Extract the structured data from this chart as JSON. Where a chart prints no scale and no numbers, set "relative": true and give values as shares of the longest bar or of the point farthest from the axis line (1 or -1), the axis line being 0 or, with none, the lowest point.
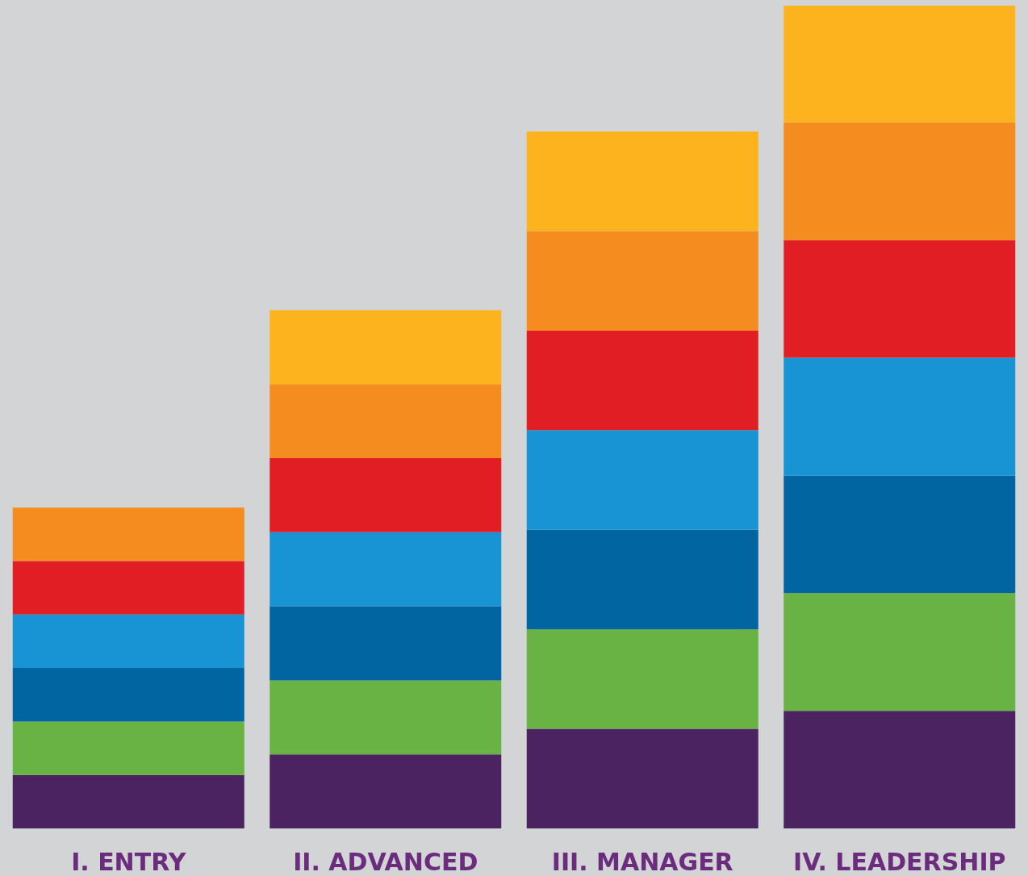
{
  "chart_data": {
    "type": "bar",
    "stacked": true,
    "relative": true,
    "categories": [
      "I. ENTRY",
      "II. ADVANCED",
      "III. MANAGER",
      "IV. LEADERSHIP"
    ],
    "series": [
      {
        "color": "#4b2360",
        "values": [
          0.065,
          0.09,
          0.121,
          0.143
        ]
      },
      {
        "color": "#69b244",
        "values": [
          0.065,
          0.09,
          0.121,
          0.143
        ]
      },
      {
        "color": "#0065a0",
        "values": [
          0.065,
          0.09,
          0.121,
          0.143
        ]
      },
      {
        "color": "#1893d4",
        "values": [
          0.065,
          0.09,
          0.121,
          0.143
        ]
      },
      {
        "color": "#e21e25",
        "values": [
          0.065,
          0.09,
          0.121,
          0.143
        ]
      },
      {
        "color": "#f48c1f",
        "values": [
          0.065,
          0.09,
          0.121,
          0.143
        ]
      },
      {
        "color": "#fdb31e",
        "values": [
          null,
          0.09,
          0.121,
          0.142
        ]
      }
    ]
  }
}
